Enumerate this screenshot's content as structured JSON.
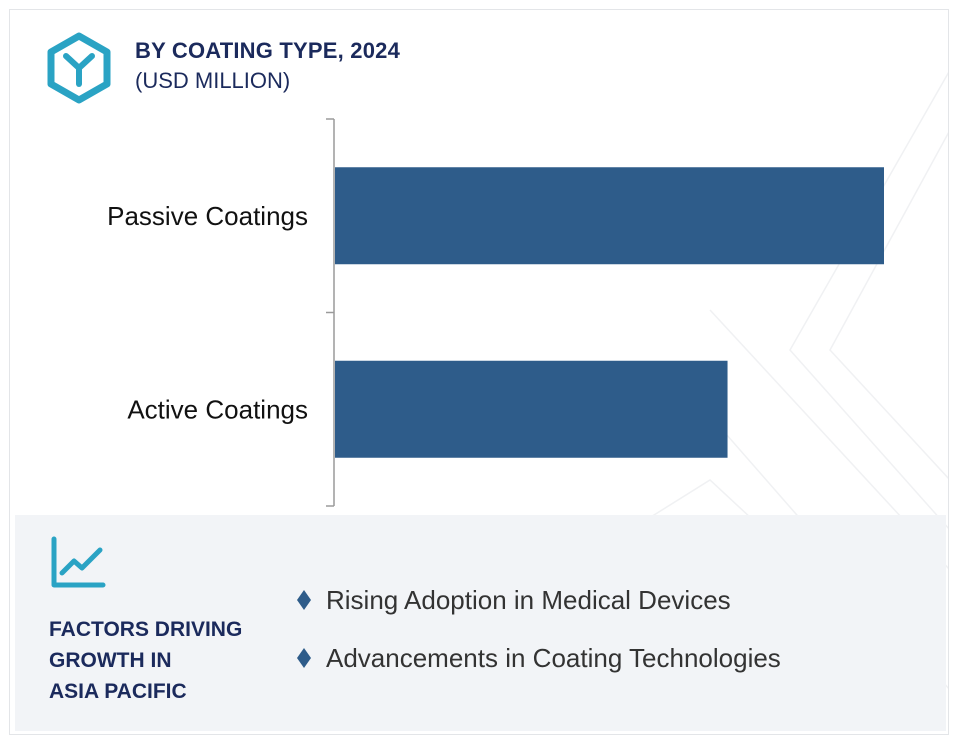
{
  "header": {
    "title": "BY COATING TYPE, 2024",
    "subtitle": "(USD MILLION)",
    "icon": "cube-y-icon"
  },
  "colors": {
    "bar": "#2e5c8a",
    "title": "#1b2a5c",
    "accent": "#2aa3c4",
    "panel_bg": "#f2f4f7"
  },
  "chart_data": {
    "type": "bar",
    "orientation": "horizontal",
    "title": "BY COATING TYPE, 2024",
    "subtitle": "(USD MILLION)",
    "categories": [
      "Passive Coatings",
      "Active Coatings"
    ],
    "values": [
      100,
      71.5
    ],
    "value_axis_visible": false,
    "grid": false,
    "legend": "none"
  },
  "factors": {
    "heading_lines": [
      "FACTORS DRIVING",
      "GROWTH IN",
      "ASIA PACIFIC"
    ],
    "icon": "trend-line-icon",
    "bullet_icon": "diamond-icon",
    "items": [
      "Rising Adoption in Medical Devices",
      "Advancements in Coating Technologies"
    ]
  }
}
